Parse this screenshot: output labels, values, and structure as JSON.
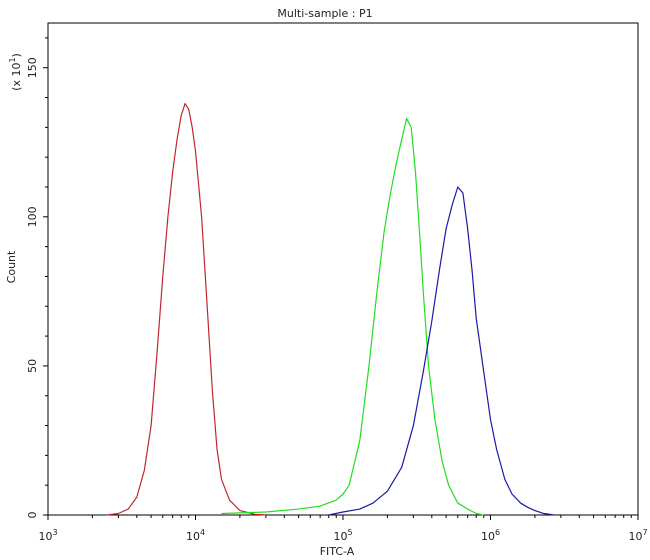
{
  "chart_data": {
    "type": "line",
    "title": "Multi-sample : P1",
    "xlabel": "FITC-A",
    "ylabel": "Count",
    "y_multiplier_label": "(x 10",
    "y_multiplier_exp": "1",
    "x_scale": "log",
    "xlim": [
      1000,
      10000000
    ],
    "ylim": [
      0,
      165
    ],
    "x_ticks": [
      {
        "base": "10",
        "exp": "3",
        "value": 1000
      },
      {
        "base": "10",
        "exp": "4",
        "value": 10000
      },
      {
        "base": "10",
        "exp": "5",
        "value": 100000
      },
      {
        "base": "10",
        "exp": "6",
        "value": 1000000
      },
      {
        "base": "10",
        "exp": "7",
        "value": 10000000
      }
    ],
    "y_ticks": [
      {
        "label": "0",
        "value": 0
      },
      {
        "label": "50",
        "value": 50
      },
      {
        "label": "100",
        "value": 100
      },
      {
        "label": "150",
        "value": 150
      }
    ],
    "grid": false,
    "series": [
      {
        "color": "#c0272d",
        "x": [
          2500,
          3000,
          3500,
          4000,
          4500,
          5000,
          5500,
          6000,
          6500,
          7000,
          7500,
          8000,
          8500,
          9000,
          9500,
          10000,
          11000,
          12000,
          13000,
          14000,
          15000,
          17000,
          20000,
          25000,
          30000
        ],
        "y": [
          0,
          0.5,
          2,
          6,
          15,
          30,
          55,
          80,
          100,
          115,
          126,
          134,
          138,
          136,
          130,
          122,
          100,
          70,
          42,
          22,
          12,
          5,
          1.5,
          0.3,
          0
        ]
      },
      {
        "color": "#22dd22",
        "x": [
          15000,
          30000,
          50000,
          70000,
          90000,
          100000,
          110000,
          130000,
          150000,
          170000,
          190000,
          210000,
          230000,
          250000,
          270000,
          290000,
          310000,
          330000,
          350000,
          380000,
          420000,
          470000,
          520000,
          600000,
          700000,
          800000,
          900000
        ],
        "y": [
          0.5,
          1,
          2,
          3,
          5,
          7,
          10,
          25,
          50,
          75,
          95,
          108,
          118,
          126,
          133,
          130,
          115,
          95,
          75,
          50,
          32,
          18,
          10,
          4,
          2,
          0.5,
          0
        ]
      },
      {
        "color": "#1a1aa8",
        "x": [
          80000,
          100000,
          130000,
          160000,
          200000,
          250000,
          300000,
          350000,
          400000,
          450000,
          500000,
          550000,
          600000,
          650000,
          700000,
          750000,
          800000,
          900000,
          1000000,
          1100000,
          1250000,
          1400000,
          1600000,
          1800000,
          2000000,
          2300000,
          2700000
        ],
        "y": [
          0,
          1,
          2,
          4,
          8,
          16,
          30,
          48,
          65,
          82,
          96,
          104,
          110,
          108,
          96,
          82,
          66,
          48,
          32,
          22,
          12,
          7,
          4,
          2.5,
          1.5,
          0.5,
          0
        ]
      }
    ]
  }
}
